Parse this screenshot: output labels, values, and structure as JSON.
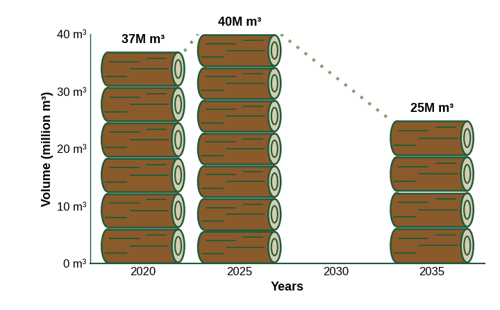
{
  "chart_data": {
    "type": "bar",
    "categories": [
      "2020",
      "2025",
      "2030",
      "2035"
    ],
    "values": [
      37,
      40,
      null,
      25
    ],
    "value_labels": [
      "37M m³",
      "40M m³",
      null,
      "25M m³"
    ],
    "data_labels": true,
    "color": "#8b5a2b",
    "x_label": "Years",
    "y_label": "Volume (million m³)",
    "ylim": [
      0,
      40
    ],
    "yticks": [
      {
        "value": 0,
        "label": "0 m³"
      },
      {
        "value": 10,
        "label": "10 m³"
      },
      {
        "value": 20,
        "label": "20 m³"
      },
      {
        "value": 30,
        "label": "30 m³"
      },
      {
        "value": 40,
        "label": "40 m³"
      }
    ]
  }
}
